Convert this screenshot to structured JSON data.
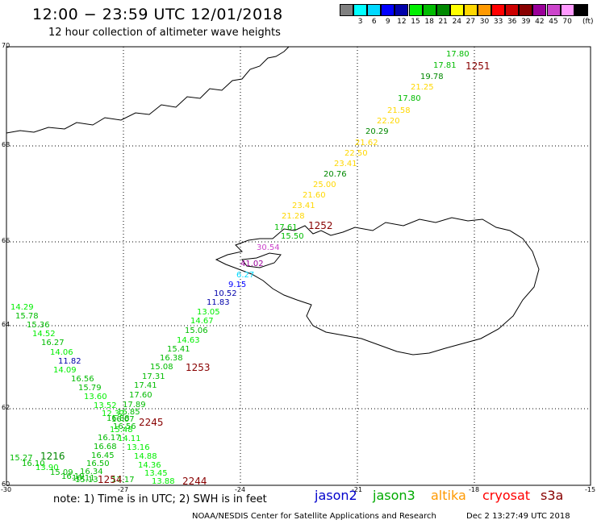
{
  "title": "12:00  −  23:59 UTC 12/01/2018",
  "subtitle": "12 hour collection of altimeter wave heights",
  "color_scale": {
    "swatches": [
      {
        "color": "#808080"
      },
      {
        "color": "#00ffff",
        "label": "3"
      },
      {
        "color": "#00d8ff",
        "label": "6"
      },
      {
        "color": "#0000ff",
        "label": "9"
      },
      {
        "color": "#0000aa",
        "label": "12"
      },
      {
        "color": "#00ee00",
        "label": "15"
      },
      {
        "color": "#00bb00",
        "label": "18"
      },
      {
        "color": "#008800",
        "label": "21"
      },
      {
        "color": "#ffff00",
        "label": "24"
      },
      {
        "color": "#ffd700",
        "label": "27"
      },
      {
        "color": "#ff9900",
        "label": "30"
      },
      {
        "color": "#ff0000",
        "label": "33"
      },
      {
        "color": "#cc0000",
        "label": "36"
      },
      {
        "color": "#880000",
        "label": "39"
      },
      {
        "color": "#990099",
        "label": "42"
      },
      {
        "color": "#cc44cc",
        "label": "45"
      },
      {
        "color": "#ff99ff",
        "label": "70"
      },
      {
        "color": "#000000"
      }
    ],
    "unit": "(ft)"
  },
  "axes": {
    "lat_labels": [
      "70",
      "68",
      "66",
      "64",
      "62",
      "60"
    ],
    "lon_labels": [
      "-30",
      "-27",
      "-24",
      "-21",
      "-18",
      "-15"
    ]
  },
  "passes": [
    {
      "label": "1251",
      "color": "#880000"
    },
    {
      "label": "1252",
      "color": "#880000"
    },
    {
      "label": "1253",
      "color": "#880000"
    },
    {
      "label": "2245",
      "color": "#880000"
    },
    {
      "label": "2244",
      "color": "#880000"
    },
    {
      "label": "1216",
      "color": "#008800"
    },
    {
      "label": "1254",
      "color": "#880000"
    }
  ],
  "track_a": [
    {
      "v": "17.80",
      "c": "#00bb00"
    },
    {
      "v": "17.81",
      "c": "#00bb00"
    },
    {
      "v": "19.78",
      "c": "#008800"
    },
    {
      "v": "21.25",
      "c": "#ffd700"
    },
    {
      "v": "17.80",
      "c": "#00bb00"
    },
    {
      "v": "21.58",
      "c": "#ffd700"
    },
    {
      "v": "22.20",
      "c": "#ffd700"
    },
    {
      "v": "20.29",
      "c": "#008800"
    },
    {
      "v": "21.62",
      "c": "#ffd700"
    },
    {
      "v": "22.50",
      "c": "#ffd700"
    },
    {
      "v": "23.41",
      "c": "#ffd700"
    },
    {
      "v": "20.76",
      "c": "#008800"
    },
    {
      "v": "25.00",
      "c": "#ffd700"
    },
    {
      "v": "21.60",
      "c": "#ffd700"
    },
    {
      "v": "23.41",
      "c": "#ffd700"
    },
    {
      "v": "21.28",
      "c": "#ffd700"
    },
    {
      "v": "17.61",
      "c": "#00bb00"
    },
    {
      "v": "15.50",
      "c": "#00bb00"
    },
    {
      "v": "30.54",
      "c": "#cc44cc"
    },
    {
      "v": "41.02",
      "c": "#990099"
    },
    {
      "v": "6.27",
      "c": "#00d8ff"
    },
    {
      "v": "9.15",
      "c": "#0000ff"
    },
    {
      "v": "10.52",
      "c": "#0000aa"
    },
    {
      "v": "11.83",
      "c": "#0000aa"
    },
    {
      "v": "13.05",
      "c": "#00ee00"
    },
    {
      "v": "14.67",
      "c": "#00ee00"
    },
    {
      "v": "15.06",
      "c": "#00bb00"
    },
    {
      "v": "14.63",
      "c": "#00ee00"
    },
    {
      "v": "15.41",
      "c": "#00bb00"
    },
    {
      "v": "16.38",
      "c": "#00bb00"
    },
    {
      "v": "15.08",
      "c": "#00bb00"
    },
    {
      "v": "17.31",
      "c": "#00bb00"
    },
    {
      "v": "17.41",
      "c": "#00bb00"
    },
    {
      "v": "17.60",
      "c": "#00bb00"
    },
    {
      "v": "17.89",
      "c": "#00bb00"
    },
    {
      "v": "16.85",
      "c": "#00bb00"
    },
    {
      "v": "16.07",
      "c": "#00bb00"
    },
    {
      "v": "15.48",
      "c": "#00ee00"
    },
    {
      "v": "14.11",
      "c": "#00ee00"
    },
    {
      "v": "13.16",
      "c": "#00ee00"
    },
    {
      "v": "14.88",
      "c": "#00ee00"
    },
    {
      "v": "14.36",
      "c": "#00ee00"
    },
    {
      "v": "13.45",
      "c": "#00ee00"
    },
    {
      "v": "13.88",
      "c": "#00ee00"
    }
  ],
  "track_b": [
    {
      "v": "14.29",
      "c": "#00ee00"
    },
    {
      "v": "15.78",
      "c": "#00bb00"
    },
    {
      "v": "15.36",
      "c": "#00bb00"
    },
    {
      "v": "14.52",
      "c": "#00ee00"
    },
    {
      "v": "16.27",
      "c": "#00bb00"
    },
    {
      "v": "14.06",
      "c": "#00ee00"
    },
    {
      "v": "11.82",
      "c": "#0000aa"
    },
    {
      "v": "14.09",
      "c": "#00ee00"
    },
    {
      "v": "16.56",
      "c": "#00bb00"
    },
    {
      "v": "15.79",
      "c": "#00bb00"
    },
    {
      "v": "13.60",
      "c": "#00ee00"
    },
    {
      "v": "13.52",
      "c": "#00ee00"
    },
    {
      "v": "12.32",
      "c": "#00ee00"
    },
    {
      "v": "16.88",
      "c": "#00bb00"
    },
    {
      "v": "16.56",
      "c": "#00bb00"
    },
    {
      "v": "16.17",
      "c": "#00bb00"
    },
    {
      "v": "16.68",
      "c": "#00bb00"
    },
    {
      "v": "16.45",
      "c": "#00bb00"
    },
    {
      "v": "16.50",
      "c": "#00bb00"
    },
    {
      "v": "16.34",
      "c": "#00bb00"
    },
    {
      "v": "16.11",
      "c": "#00bb00"
    },
    {
      "v": "17.17",
      "c": "#00bb00"
    }
  ],
  "track_c": [
    {
      "v": "15.27",
      "c": "#00bb00"
    },
    {
      "v": "16.10",
      "c": "#00bb00"
    },
    {
      "v": "13.90",
      "c": "#00ee00"
    },
    {
      "v": "15.09",
      "c": "#00bb00"
    },
    {
      "v": "16.19",
      "c": "#00bb00"
    },
    {
      "v": "15.13",
      "c": "#00bb00"
    }
  ],
  "note": "note:  1) Time is in UTC;  2) SWH is in feet",
  "missions": [
    {
      "name": "jason2",
      "color": "#0000cc"
    },
    {
      "name": "jason3",
      "color": "#00aa00"
    },
    {
      "name": "altika",
      "color": "#ff9900"
    },
    {
      "name": "cryosat",
      "color": "#ff0000"
    },
    {
      "name": "s3a",
      "color": "#880000"
    }
  ],
  "credit": "NOAA/NESDIS Center for Satellite Applications and Research",
  "timestamp": "Dec  2 13:27:49 UTC 2018"
}
